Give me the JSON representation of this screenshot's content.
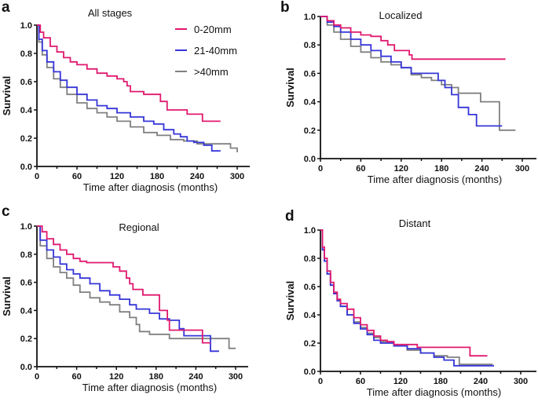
{
  "colors": {
    "0-20mm": "#e0196e",
    "21-40mm": "#3535d8",
    ">40mm": "#808080"
  },
  "legend": {
    "items": [
      {
        "label": "0-20mm",
        "key": "0-20mm"
      },
      {
        "label": "21-40mm",
        "key": "21-40mm"
      },
      {
        "label": ">40mm",
        "key": ">40mm"
      }
    ]
  },
  "chart_data": [
    {
      "panel": "a",
      "type": "line",
      "title": "All stages",
      "xlabel": "Time after diagnosis (months)",
      "ylabel": "Survival",
      "xlim": [
        0,
        320
      ],
      "ylim": [
        0,
        1.0
      ],
      "xticks": [
        0,
        60,
        120,
        180,
        240,
        300
      ],
      "yticks": [
        0.0,
        0.2,
        0.4,
        0.6,
        0.8,
        1.0
      ],
      "xtick_labels": [
        "0",
        "60",
        "120",
        "180",
        "240",
        "300"
      ],
      "ytick_labels": [
        "0.0",
        "0.2",
        "0.4",
        "0.6",
        "0.8",
        "1.0"
      ],
      "legend_position": "top-right",
      "series": [
        {
          "name": "0-20mm",
          "x": [
            0,
            5,
            10,
            20,
            30,
            40,
            50,
            60,
            75,
            90,
            105,
            120,
            130,
            135,
            140,
            145,
            160,
            175,
            185,
            195,
            210,
            225,
            240,
            248,
            275
          ],
          "y": [
            1.0,
            0.95,
            0.91,
            0.85,
            0.81,
            0.77,
            0.74,
            0.72,
            0.69,
            0.66,
            0.64,
            0.62,
            0.6,
            0.57,
            0.53,
            0.53,
            0.51,
            0.51,
            0.46,
            0.4,
            0.4,
            0.37,
            0.37,
            0.32,
            0.32
          ]
        },
        {
          "name": "21-40mm",
          "x": [
            0,
            3,
            8,
            15,
            25,
            35,
            45,
            60,
            75,
            90,
            105,
            120,
            140,
            160,
            175,
            190,
            205,
            215,
            225,
            235,
            250,
            262,
            275
          ],
          "y": [
            1.0,
            0.9,
            0.82,
            0.74,
            0.67,
            0.61,
            0.56,
            0.51,
            0.47,
            0.43,
            0.41,
            0.38,
            0.35,
            0.32,
            0.3,
            0.26,
            0.23,
            0.21,
            0.18,
            0.17,
            0.15,
            0.11,
            0.11
          ]
        },
        {
          "name": ">40mm",
          "x": [
            0,
            3,
            8,
            15,
            25,
            35,
            45,
            60,
            75,
            90,
            105,
            120,
            140,
            160,
            180,
            200,
            220,
            240,
            265,
            290,
            300
          ],
          "y": [
            1.0,
            0.88,
            0.79,
            0.7,
            0.62,
            0.56,
            0.51,
            0.45,
            0.41,
            0.38,
            0.35,
            0.32,
            0.28,
            0.24,
            0.22,
            0.19,
            0.18,
            0.16,
            0.16,
            0.13,
            0.1
          ]
        }
      ]
    },
    {
      "panel": "b",
      "type": "line",
      "title": "Localized",
      "xlabel": "Time after diagnosis (months)",
      "ylabel": "Survival",
      "xlim": [
        0,
        320
      ],
      "ylim": [
        0,
        1.0
      ],
      "xticks": [
        0,
        60,
        120,
        180,
        240,
        300
      ],
      "yticks": [
        0.0,
        0.2,
        0.4,
        0.6,
        0.8,
        1.0
      ],
      "xtick_labels": [
        "0",
        "60",
        "120",
        "180",
        "240",
        "300"
      ],
      "ytick_labels": [
        "0.0",
        "0.2",
        "0.4",
        "0.6",
        "0.8",
        "1.0"
      ],
      "series": [
        {
          "name": "0-20mm",
          "x": [
            0,
            10,
            20,
            30,
            45,
            60,
            75,
            90,
            100,
            110,
            120,
            132,
            136,
            140,
            275
          ],
          "y": [
            1.0,
            0.97,
            0.94,
            0.92,
            0.89,
            0.87,
            0.86,
            0.83,
            0.8,
            0.76,
            0.76,
            0.73,
            0.7,
            0.7,
            0.7
          ]
        },
        {
          "name": "21-40mm",
          "x": [
            0,
            10,
            20,
            30,
            45,
            60,
            75,
            90,
            105,
            120,
            135,
            150,
            170,
            175,
            185,
            195,
            205,
            220,
            232,
            270
          ],
          "y": [
            1.0,
            0.96,
            0.93,
            0.89,
            0.84,
            0.8,
            0.76,
            0.72,
            0.68,
            0.64,
            0.6,
            0.6,
            0.6,
            0.55,
            0.5,
            0.45,
            0.36,
            0.31,
            0.23,
            0.23
          ]
        },
        {
          "name": ">40mm",
          "x": [
            0,
            10,
            20,
            30,
            45,
            60,
            75,
            90,
            105,
            120,
            135,
            150,
            165,
            180,
            195,
            205,
            238,
            266,
            290
          ],
          "y": [
            1.0,
            0.94,
            0.89,
            0.84,
            0.79,
            0.75,
            0.71,
            0.68,
            0.66,
            0.64,
            0.59,
            0.57,
            0.55,
            0.52,
            0.5,
            0.46,
            0.4,
            0.2,
            0.2
          ]
        }
      ]
    },
    {
      "panel": "c",
      "type": "line",
      "title": "Regional",
      "xlabel": "Time after diagnosis (months)",
      "ylabel": "Survival",
      "xlim": [
        0,
        320
      ],
      "ylim": [
        0,
        1.0
      ],
      "xticks": [
        0,
        60,
        120,
        180,
        240,
        300
      ],
      "yticks": [
        0.0,
        0.2,
        0.4,
        0.6,
        0.8,
        1.0
      ],
      "xtick_labels": [
        "0",
        "60",
        "120",
        "180",
        "240",
        "300"
      ],
      "ytick_labels": [
        "0.0",
        "0.2",
        "0.4",
        "0.6",
        "0.8",
        "1.0"
      ],
      "series": [
        {
          "name": "0-20mm",
          "x": [
            0,
            8,
            15,
            25,
            35,
            45,
            55,
            65,
            75,
            115,
            125,
            135,
            140,
            145,
            160,
            180,
            185,
            197,
            200,
            245,
            250,
            262
          ],
          "y": [
            1.0,
            0.96,
            0.91,
            0.87,
            0.83,
            0.8,
            0.77,
            0.75,
            0.74,
            0.71,
            0.68,
            0.63,
            0.59,
            0.55,
            0.51,
            0.51,
            0.4,
            0.33,
            0.26,
            0.26,
            0.17,
            0.17
          ]
        },
        {
          "name": "21-40mm",
          "x": [
            0,
            5,
            15,
            25,
            35,
            45,
            55,
            65,
            80,
            95,
            110,
            125,
            140,
            150,
            170,
            185,
            200,
            215,
            222,
            260,
            262,
            275
          ],
          "y": [
            1.0,
            0.9,
            0.83,
            0.78,
            0.73,
            0.69,
            0.66,
            0.63,
            0.59,
            0.54,
            0.51,
            0.48,
            0.44,
            0.41,
            0.38,
            0.34,
            0.33,
            0.27,
            0.22,
            0.22,
            0.11,
            0.11
          ]
        },
        {
          "name": ">40mm",
          "x": [
            0,
            5,
            15,
            25,
            35,
            45,
            55,
            65,
            80,
            95,
            110,
            125,
            140,
            150,
            155,
            170,
            195,
            200,
            290,
            300
          ],
          "y": [
            1.0,
            0.86,
            0.77,
            0.71,
            0.67,
            0.63,
            0.58,
            0.53,
            0.49,
            0.46,
            0.44,
            0.39,
            0.35,
            0.3,
            0.25,
            0.23,
            0.23,
            0.2,
            0.13,
            0.13
          ]
        }
      ]
    },
    {
      "panel": "d",
      "type": "line",
      "title": "Distant",
      "xlabel": "Time after diagnosis (months)",
      "ylabel": "Survival",
      "xlim": [
        0,
        320
      ],
      "ylim": [
        0,
        1.0
      ],
      "xticks": [
        0,
        60,
        120,
        180,
        240,
        300
      ],
      "yticks": [
        0.0,
        0.2,
        0.4,
        0.6,
        0.8,
        1.0
      ],
      "xtick_labels": [
        "0",
        "60",
        "120",
        "180",
        "240",
        "300"
      ],
      "ytick_labels": [
        "0.0",
        "0.2",
        "0.4",
        "0.6",
        "0.8",
        "1.0"
      ],
      "series": [
        {
          "name": "0-20mm",
          "x": [
            0,
            3,
            6,
            10,
            15,
            20,
            25,
            30,
            40,
            50,
            60,
            70,
            80,
            90,
            100,
            110,
            145,
            220,
            224,
            250
          ],
          "y": [
            1.0,
            0.88,
            0.8,
            0.71,
            0.63,
            0.56,
            0.51,
            0.48,
            0.44,
            0.38,
            0.33,
            0.29,
            0.25,
            0.22,
            0.21,
            0.19,
            0.17,
            0.17,
            0.11,
            0.11
          ]
        },
        {
          "name": "21-40mm",
          "x": [
            0,
            3,
            6,
            10,
            15,
            20,
            25,
            30,
            40,
            50,
            60,
            70,
            80,
            90,
            110,
            130,
            150,
            170,
            185,
            200,
            208,
            260
          ],
          "y": [
            1.0,
            0.86,
            0.78,
            0.69,
            0.61,
            0.55,
            0.5,
            0.46,
            0.4,
            0.34,
            0.3,
            0.26,
            0.22,
            0.2,
            0.18,
            0.16,
            0.13,
            0.1,
            0.08,
            0.04,
            0.04,
            0.04
          ]
        },
        {
          "name": ">40mm",
          "x": [
            0,
            3,
            6,
            10,
            15,
            20,
            25,
            30,
            40,
            50,
            60,
            70,
            80,
            90,
            110,
            130,
            150,
            170,
            190,
            205,
            208,
            258
          ],
          "y": [
            1.0,
            0.86,
            0.78,
            0.69,
            0.61,
            0.55,
            0.5,
            0.46,
            0.4,
            0.35,
            0.31,
            0.27,
            0.24,
            0.21,
            0.18,
            0.15,
            0.13,
            0.11,
            0.1,
            0.1,
            0.05,
            0.05
          ]
        }
      ]
    }
  ]
}
